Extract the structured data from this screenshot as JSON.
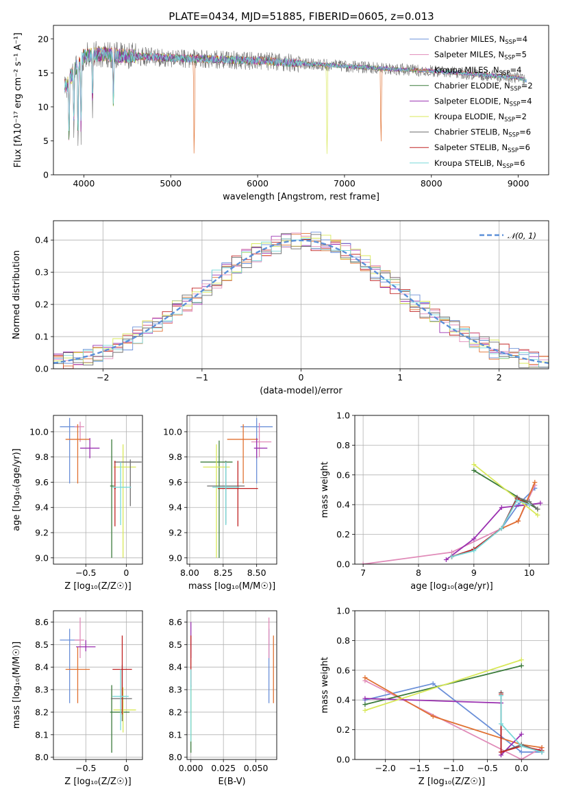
{
  "title": "PLATE=0434, MJD=51885, FIBERID=0605, z=0.013",
  "colors": {
    "Chabrier MILES": "#6a8fd8",
    "Salpeter MILES": "#e08ab8",
    "Kroupa MILES": "#e07030",
    "Chabrier ELODIE": "#3a7a3a",
    "Salpeter ELODIE": "#9a30b0",
    "Kroupa ELODIE": "#d8e858",
    "Chabrier STELIB": "#6e6e6e",
    "Salpeter STELIB": "#c02020",
    "Kroupa STELIB": "#78d8d8"
  },
  "legend_spectrum": [
    {
      "name": "Chabrier MILES",
      "n": "4"
    },
    {
      "name": "Salpeter MILES",
      "n": "5"
    },
    {
      "name": "Kroupa MILES",
      "n": "4"
    },
    {
      "name": "Chabrier ELODIE",
      "n": "2"
    },
    {
      "name": "Salpeter ELODIE",
      "n": "4"
    },
    {
      "name": "Kroupa ELODIE",
      "n": "2"
    },
    {
      "name": "Chabrier STELIB",
      "n": "6"
    },
    {
      "name": "Salpeter STELIB",
      "n": "6"
    },
    {
      "name": "Kroupa STELIB",
      "n": "6"
    }
  ],
  "legend_hist": "𝒩(0, 1)",
  "chart_data": [
    {
      "type": "line",
      "id": "spectrum",
      "xlabel": "wavelength [Angstrom, rest frame]",
      "ylabel": "Flux [fλ10⁻¹⁷ erg cm⁻² s⁻¹ A⁻¹]",
      "xlim": [
        3650,
        9350
      ],
      "ylim": [
        0,
        22
      ],
      "xticks": [
        4000,
        5000,
        6000,
        7000,
        8000,
        9000
      ],
      "yticks": [
        0,
        5,
        10,
        15,
        20
      ],
      "grid": false,
      "legend": "top-right",
      "continuum": {
        "x": [
          3800,
          3900,
          4000,
          4200,
          4500,
          5000,
          5500,
          6000,
          6500,
          7000,
          7500,
          8000,
          8500,
          9000,
          9100
        ],
        "y": [
          13.0,
          15.5,
          17.5,
          17.8,
          17.5,
          17.2,
          17.0,
          16.8,
          16.4,
          16.0,
          15.6,
          15.3,
          14.8,
          14.3,
          13.8
        ]
      },
      "dips": [
        {
          "x": 3830,
          "y": 4.0
        },
        {
          "x": 3885,
          "y": 6.5
        },
        {
          "x": 3933,
          "y": 3.5
        },
        {
          "x": 3968,
          "y": 5.0
        },
        {
          "x": 4101,
          "y": 9.0
        },
        {
          "x": 4340,
          "y": 9.5
        },
        {
          "x": 5270,
          "y": 0.0
        },
        {
          "x": 6800,
          "y": 0.0
        },
        {
          "x": 7420,
          "y": 2.5
        }
      ]
    },
    {
      "type": "histogram",
      "id": "residuals",
      "xlabel": "(data-model)/error",
      "ylabel": "Normed distribution",
      "xlim": [
        -2.5,
        2.5
      ],
      "ylim": [
        0,
        0.46
      ],
      "xticks": [
        -2,
        -1,
        0,
        1,
        2
      ],
      "yticks": [
        0.0,
        0.1,
        0.2,
        0.3,
        0.4
      ],
      "grid": true,
      "legend": "top-right",
      "gaussian": {
        "mean": 0,
        "sigma": 1,
        "color": "#5b8fd8"
      }
    },
    {
      "type": "scatter",
      "id": "age_vs_Z",
      "xlabel": "Z [log₁₀(Z/Z☉)]",
      "ylabel": "age  [log₁₀(age/yr)]",
      "xlim": [
        -0.9,
        0.2
      ],
      "ylim": [
        8.95,
        10.13
      ],
      "xticks": [
        -0.5,
        0.0
      ],
      "yticks": [
        9.0,
        9.2,
        9.4,
        9.6,
        9.8,
        10.0
      ],
      "grid": true,
      "points": [
        {
          "model": "Chabrier MILES",
          "x": -0.7,
          "y": 10.04,
          "xerr": [
            0.12,
            0.12
          ],
          "yerr": [
            0.45,
            0.07
          ]
        },
        {
          "model": "Salpeter MILES",
          "x": -0.57,
          "y": 10.04,
          "xerr": [
            0.07,
            0.05
          ],
          "yerr": [
            0.12,
            0.04
          ]
        },
        {
          "model": "Kroupa MILES",
          "x": -0.6,
          "y": 9.94,
          "xerr": [
            0.15,
            0.15
          ],
          "yerr": [
            0.35,
            0.12
          ]
        },
        {
          "model": "Salpeter ELODIE",
          "x": -0.45,
          "y": 9.87,
          "xerr": [
            0.12,
            0.12
          ],
          "yerr": [
            0.08,
            0.08
          ]
        },
        {
          "model": "Kroupa ELODIE",
          "x": -0.04,
          "y": 9.72,
          "xerr": [
            0.12,
            0.16
          ],
          "yerr": [
            0.72,
            0.18
          ]
        },
        {
          "model": "Chabrier ELODIE",
          "x": -0.18,
          "y": 9.57,
          "xerr": [
            0.02,
            0.03
          ],
          "yerr": [
            0.57,
            0.37
          ]
        },
        {
          "model": "Chabrier STELIB",
          "x": 0.05,
          "y": 9.76,
          "xerr": [
            0.2,
            0.14
          ],
          "yerr": [
            0.35,
            0.02
          ]
        },
        {
          "model": "Salpeter STELIB",
          "x": -0.14,
          "y": 9.55,
          "xerr": [
            0.01,
            0.01
          ],
          "yerr": [
            0.3,
            0.22
          ]
        },
        {
          "model": "Kroupa STELIB",
          "x": -0.07,
          "y": 9.56,
          "xerr": [
            0.1,
            0.13
          ],
          "yerr": [
            0.3,
            0.2
          ]
        }
      ]
    },
    {
      "type": "scatter",
      "id": "age_vs_mass",
      "xlabel": "mass [log₁₀(M/M☉)]",
      "ylabel": "",
      "xlim": [
        7.98,
        8.65
      ],
      "ylim": [
        8.95,
        10.13
      ],
      "xticks": [
        8.0,
        8.25,
        8.5
      ],
      "yticks": [
        9.0,
        9.2,
        9.4,
        9.6,
        9.8,
        10.0
      ],
      "grid": true,
      "points": [
        {
          "model": "Chabrier MILES",
          "x": 8.5,
          "y": 10.04,
          "xerr": [
            0.12,
            0.12
          ],
          "yerr": [
            0.45,
            0.07
          ]
        },
        {
          "model": "Salpeter MILES",
          "x": 8.52,
          "y": 9.92,
          "xerr": [
            0.06,
            0.09
          ],
          "yerr": [
            0.12,
            0.15
          ]
        },
        {
          "model": "Kroupa MILES",
          "x": 8.4,
          "y": 9.94,
          "xerr": [
            0.12,
            0.11
          ],
          "yerr": [
            0.35,
            0.12
          ]
        },
        {
          "model": "Salpeter ELODIE",
          "x": 8.5,
          "y": 9.87,
          "xerr": [
            0.02,
            0.08
          ],
          "yerr": [
            0.08,
            0.08
          ]
        },
        {
          "model": "Chabrier ELODIE",
          "x": 8.22,
          "y": 9.76,
          "xerr": [
            0.14,
            0.1
          ],
          "yerr": [
            0.76,
            0.17
          ]
        },
        {
          "model": "Kroupa ELODIE",
          "x": 8.2,
          "y": 9.72,
          "xerr": [
            0.1,
            0.1
          ],
          "yerr": [
            0.72,
            0.18
          ]
        },
        {
          "model": "Chabrier STELIB",
          "x": 8.27,
          "y": 9.57,
          "xerr": [
            0.14,
            0.14
          ],
          "yerr": [
            0.3,
            0.2
          ]
        },
        {
          "model": "Salpeter STELIB",
          "x": 8.36,
          "y": 9.55,
          "xerr": [
            0.15,
            0.15
          ],
          "yerr": [
            0.3,
            0.22
          ]
        },
        {
          "model": "Kroupa STELIB",
          "x": 8.27,
          "y": 9.56,
          "xerr": [
            0.1,
            0.1
          ],
          "yerr": [
            0.3,
            0.2
          ]
        }
      ]
    },
    {
      "type": "line",
      "id": "weight_vs_age",
      "xlabel": "age  [log₁₀(age/yr)]",
      "ylabel": "mass weight",
      "xlim": [
        6.85,
        10.35
      ],
      "ylim": [
        0,
        1
      ],
      "xticks": [
        7,
        8,
        9,
        10
      ],
      "yticks": [
        0.0,
        0.2,
        0.4,
        0.6,
        0.8,
        1.0
      ],
      "grid": true,
      "series": [
        {
          "name": "Chabrier MILES",
          "x": [
            8.6,
            9.0,
            9.5,
            9.8,
            10.1
          ],
          "y": [
            0.05,
            0.1,
            0.24,
            0.4,
            0.51
          ]
        },
        {
          "name": "Salpeter MILES",
          "x": [
            7.0,
            8.6,
            9.5,
            9.8,
            10.1
          ],
          "y": [
            0.0,
            0.08,
            0.24,
            0.29,
            0.53
          ]
        },
        {
          "name": "Kroupa MILES",
          "x": [
            8.6,
            9.0,
            9.5,
            9.8,
            10.1
          ],
          "y": [
            0.05,
            0.1,
            0.24,
            0.29,
            0.55
          ]
        },
        {
          "name": "Chabrier ELODIE",
          "x": [
            9.0,
            10.15
          ],
          "y": [
            0.63,
            0.37
          ]
        },
        {
          "name": "Salpeter ELODIE",
          "x": [
            8.5,
            9.0,
            9.5,
            10.0,
            10.2
          ],
          "y": [
            0.03,
            0.17,
            0.38,
            0.4,
            0.41
          ]
        },
        {
          "name": "Kroupa ELODIE",
          "x": [
            9.0,
            10.15
          ],
          "y": [
            0.67,
            0.33
          ]
        },
        {
          "name": "Chabrier STELIB",
          "x": [
            8.6,
            9.0,
            9.5,
            9.78,
            10.0,
            10.15
          ],
          "y": [
            0.05,
            0.1,
            0.24,
            0.45,
            0.42,
            0.37
          ]
        },
        {
          "name": "Salpeter STELIB",
          "x": [
            8.6,
            9.0,
            9.5,
            9.78,
            10.0
          ],
          "y": [
            0.05,
            0.1,
            0.24,
            0.44,
            0.4
          ]
        },
        {
          "name": "Kroupa STELIB",
          "x": [
            8.6,
            9.0,
            9.5,
            9.78,
            10.0
          ],
          "y": [
            0.05,
            0.09,
            0.24,
            0.43,
            0.4
          ]
        }
      ]
    },
    {
      "type": "scatter",
      "id": "mass_vs_Z",
      "xlabel": "Z [log₁₀(Z/Z☉)]",
      "ylabel": "mass [log₁₀(M/M☉)]",
      "xlim": [
        -0.9,
        0.2
      ],
      "ylim": [
        7.99,
        8.65
      ],
      "xticks": [
        -0.5,
        0.0
      ],
      "yticks": [
        8.0,
        8.1,
        8.2,
        8.3,
        8.4,
        8.5,
        8.6
      ],
      "grid": true,
      "points": [
        {
          "model": "Chabrier MILES",
          "x": -0.7,
          "y": 8.52,
          "xerr": [
            0.12,
            0.12
          ],
          "yerr": [
            0.28,
            0.05
          ]
        },
        {
          "model": "Salpeter MILES",
          "x": -0.57,
          "y": 8.52,
          "xerr": [
            0.07,
            0.05
          ],
          "yerr": [
            0.08,
            0.1
          ]
        },
        {
          "model": "Kroupa MILES",
          "x": -0.6,
          "y": 8.39,
          "xerr": [
            0.15,
            0.15
          ],
          "yerr": [
            0.15,
            0.1
          ]
        },
        {
          "model": "Salpeter ELODIE",
          "x": -0.5,
          "y": 8.49,
          "xerr": [
            0.12,
            0.12
          ],
          "yerr": [
            0.02,
            0.03
          ]
        },
        {
          "model": "Chabrier ELODIE",
          "x": -0.18,
          "y": 8.2,
          "xerr": [
            0.02,
            0.22
          ],
          "yerr": [
            0.18,
            0.12
          ]
        },
        {
          "model": "Kroupa ELODIE",
          "x": -0.04,
          "y": 8.21,
          "xerr": [
            0.12,
            0.16
          ],
          "yerr": [
            0.1,
            0.1
          ]
        },
        {
          "model": "Chabrier STELIB",
          "x": -0.05,
          "y": 8.26,
          "xerr": [
            0.14,
            0.12
          ],
          "yerr": [
            0.1,
            0.15
          ]
        },
        {
          "model": "Salpeter STELIB",
          "x": -0.05,
          "y": 8.39,
          "xerr": [
            0.12,
            0.12
          ],
          "yerr": [
            0.2,
            0.15
          ]
        },
        {
          "model": "Kroupa STELIB",
          "x": -0.07,
          "y": 8.27,
          "xerr": [
            0.1,
            0.1
          ],
          "yerr": [
            0.15,
            0.12
          ]
        }
      ]
    },
    {
      "type": "scatter",
      "id": "mass_vs_EBV",
      "xlabel": "E(B-V)",
      "ylabel": "",
      "xlim": [
        -0.003,
        0.066
      ],
      "ylim": [
        7.99,
        8.65
      ],
      "xticks": [
        0.0,
        0.025,
        0.05
      ],
      "yticks": [
        8.0,
        8.1,
        8.2,
        8.3,
        8.4,
        8.5,
        8.6
      ],
      "grid": true,
      "points": [
        {
          "model": "Chabrier MILES",
          "x": 0.06,
          "y": 8.52,
          "xerr": [
            0,
            0
          ],
          "yerr": [
            0.28,
            0.05
          ]
        },
        {
          "model": "Salpeter MILES",
          "x": 0.06,
          "y": 8.52,
          "xerr": [
            0,
            0
          ],
          "yerr": [
            0.08,
            0.1
          ]
        },
        {
          "model": "Kroupa MILES",
          "x": 0.0635,
          "y": 8.39,
          "xerr": [
            0,
            0
          ],
          "yerr": [
            0.15,
            0.15
          ]
        },
        {
          "model": "Salpeter ELODIE",
          "x": 0.0,
          "y": 8.49,
          "xerr": [
            0,
            0
          ],
          "yerr": [
            0.05,
            0.11
          ]
        },
        {
          "model": "Salpeter STELIB",
          "x": 0.0,
          "y": 8.39,
          "xerr": [
            0,
            0
          ],
          "yerr": [
            0.3,
            0.15
          ]
        },
        {
          "model": "Chabrier ELODIE",
          "x": 0.0,
          "y": 8.2,
          "xerr": [
            0,
            0
          ],
          "yerr": [
            0.18,
            0.12
          ]
        },
        {
          "model": "Kroupa ELODIE",
          "x": 0.0,
          "y": 8.21,
          "xerr": [
            0,
            0
          ],
          "yerr": [
            0.14,
            0.1
          ]
        },
        {
          "model": "Kroupa STELIB",
          "x": 0.0,
          "y": 8.27,
          "xerr": [
            0,
            0
          ],
          "yerr": [
            0.2,
            0.12
          ]
        }
      ]
    },
    {
      "type": "line",
      "id": "weight_vs_Z",
      "xlabel": "Z [log₁₀(Z/Z☉)]",
      "ylabel": "mass weight",
      "xlim": [
        -2.45,
        0.4
      ],
      "ylim": [
        0,
        1
      ],
      "xticks": [
        -2.0,
        -1.5,
        -1.0,
        -0.5,
        0.0
      ],
      "yticks": [
        0.0,
        0.2,
        0.4,
        0.6,
        0.8,
        1.0
      ],
      "grid": true,
      "series": [
        {
          "name": "Chabrier MILES",
          "x": [
            -2.3,
            -1.3,
            0.0,
            0.3
          ],
          "y": [
            0.4,
            0.51,
            0.05,
            0.05
          ]
        },
        {
          "name": "Salpeter MILES",
          "x": [
            -2.3,
            0.0,
            0.3
          ],
          "y": [
            0.53,
            0.0,
            0.08
          ]
        },
        {
          "name": "Kroupa MILES",
          "x": [
            -2.3,
            -1.3,
            0.0,
            0.3
          ],
          "y": [
            0.55,
            0.29,
            0.1,
            0.08
          ]
        },
        {
          "name": "Chabrier ELODIE",
          "x": [
            -2.3,
            0.0
          ],
          "y": [
            0.37,
            0.63
          ]
        },
        {
          "name": "Salpeter ELODIE",
          "x": [
            -2.3,
            -0.3,
            -0.3,
            0.0
          ],
          "y": [
            0.41,
            0.38,
            0.03,
            0.17
          ]
        },
        {
          "name": "Kroupa ELODIE",
          "x": [
            -2.3,
            0.0
          ],
          "y": [
            0.33,
            0.67
          ]
        },
        {
          "name": "Chabrier STELIB",
          "x": [
            -0.3,
            -0.3,
            0.0,
            0.3
          ],
          "y": [
            0.45,
            0.05,
            0.1,
            0.05
          ]
        },
        {
          "name": "Salpeter STELIB",
          "x": [
            -0.3,
            -0.3,
            0.0,
            0.3
          ],
          "y": [
            0.44,
            0.05,
            0.09,
            0.06
          ]
        },
        {
          "name": "Kroupa STELIB",
          "x": [
            -0.3,
            -0.3,
            0.0,
            0.3
          ],
          "y": [
            0.43,
            0.24,
            0.09,
            0.05
          ]
        }
      ]
    }
  ]
}
